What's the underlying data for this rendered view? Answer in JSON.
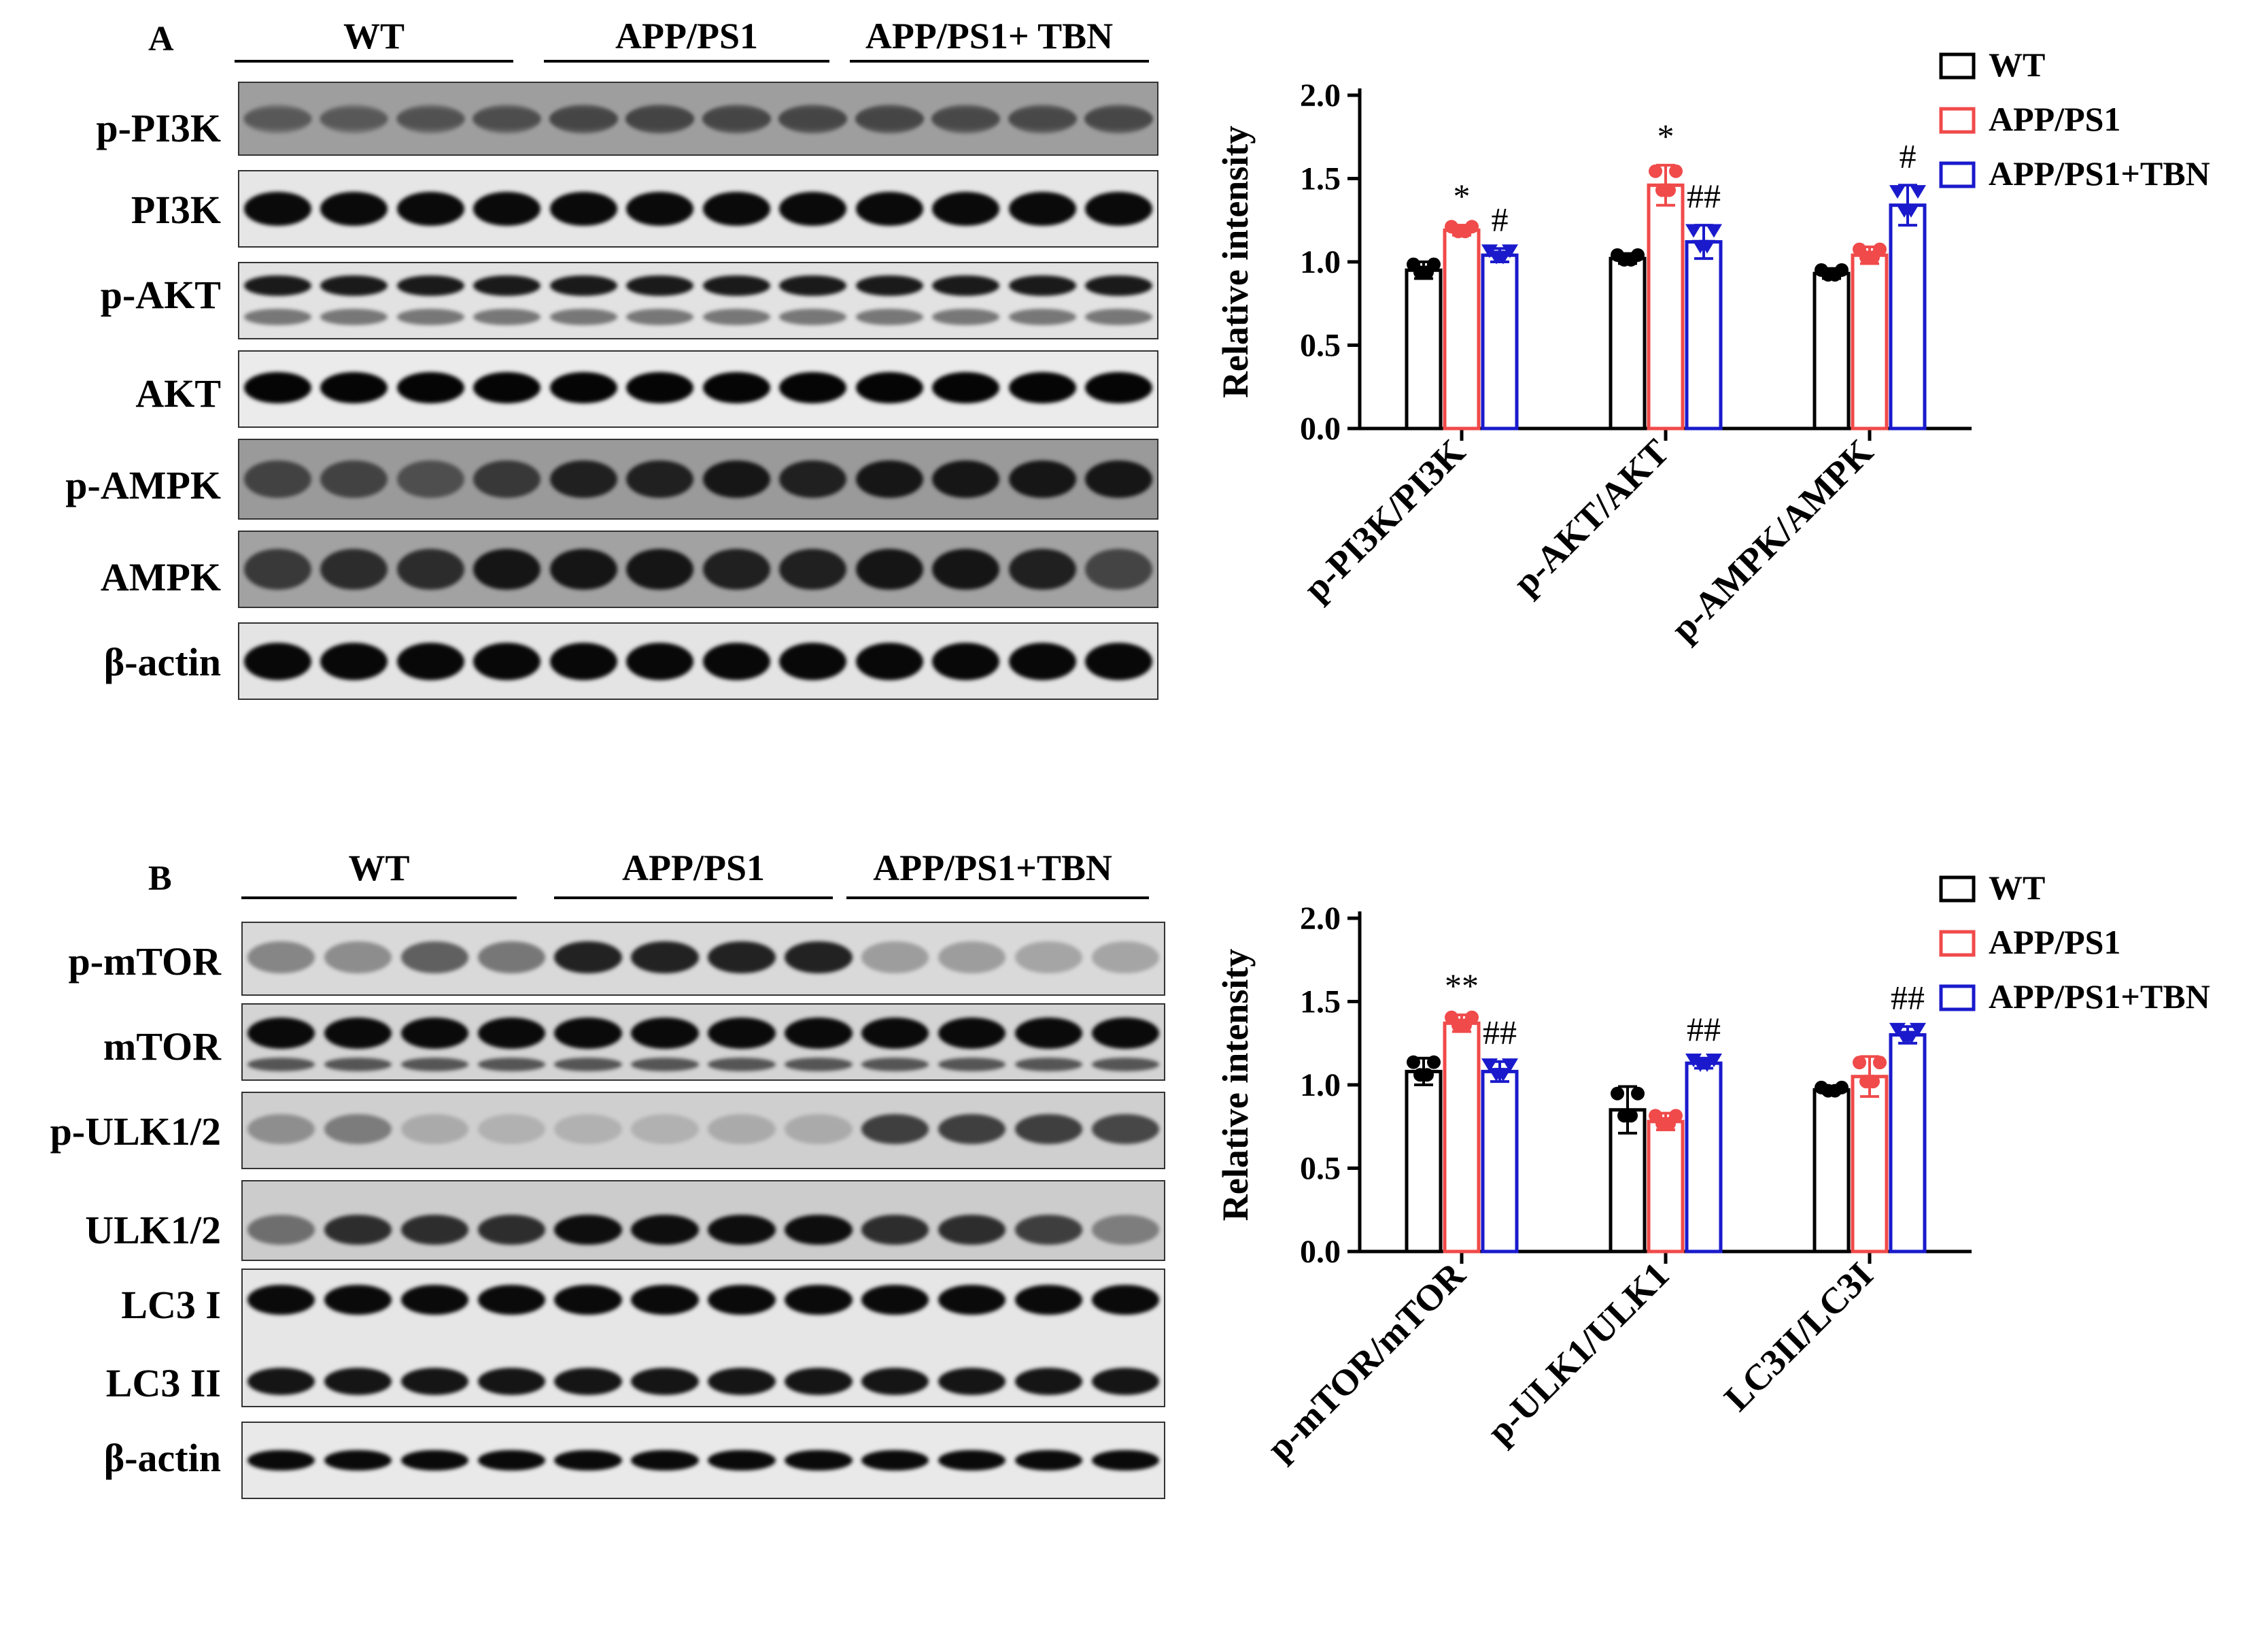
{
  "panelA": {
    "letter": "A",
    "groups": [
      "WT",
      "APP/PS1",
      "APP/PS1+ TBN"
    ],
    "rows": [
      "p-PI3K",
      "PI3K",
      "p-AKT",
      "AKT",
      "p-AMPK",
      "AMPK",
      "β-actin"
    ]
  },
  "panelB": {
    "letter": "B",
    "groups": [
      "WT",
      "APP/PS1",
      "APP/PS1+TBN"
    ],
    "rows": [
      "p-mTOR",
      "mTOR",
      "p-ULK1/2",
      "ULK1/2",
      "LC3 I",
      "LC3 II",
      "β-actin"
    ]
  },
  "colors": {
    "WT": "#000000",
    "APP/PS1": "#f04a4a",
    "APP/PS1+TBN": "#1a1acc"
  },
  "chart_data": [
    {
      "type": "bar",
      "ylabel": "Relative intensity",
      "ylim": [
        0,
        2.0
      ],
      "yticks": [
        "0.0",
        "0.5",
        "1.0",
        "1.5",
        "2.0"
      ],
      "categories": [
        "p-PI3K/PI3K",
        "p-AKT/AKT",
        "p-AMPK/AMPK"
      ],
      "series": [
        {
          "name": "WT",
          "values": [
            0.95,
            1.02,
            0.93
          ],
          "errors": [
            0.05,
            0.03,
            0.03
          ]
        },
        {
          "name": "APP/PS1",
          "values": [
            1.19,
            1.46,
            1.04
          ],
          "errors": [
            0.03,
            0.12,
            0.05
          ]
        },
        {
          "name": "APP/PS1+TBN",
          "values": [
            1.04,
            1.12,
            1.34
          ],
          "errors": [
            0.04,
            0.1,
            0.12
          ]
        }
      ],
      "annotations": [
        [
          "",
          "*",
          "#"
        ],
        [
          "",
          "*",
          "##"
        ],
        [
          "",
          "",
          "#"
        ]
      ],
      "legend": [
        "WT",
        "APP/PS1",
        "APP/PS1+TBN"
      ],
      "legend_position": "top-right"
    },
    {
      "type": "bar",
      "ylabel": "Relative intensity",
      "ylim": [
        0,
        2.0
      ],
      "yticks": [
        "0.0",
        "0.5",
        "1.0",
        "1.5",
        "2.0"
      ],
      "categories": [
        "p-mTOR/mTOR",
        "p-ULK1/ULK1",
        "LC3II/LC3I"
      ],
      "series": [
        {
          "name": "WT",
          "values": [
            1.08,
            0.85,
            0.97
          ],
          "errors": [
            0.08,
            0.14,
            0.02
          ]
        },
        {
          "name": "APP/PS1",
          "values": [
            1.37,
            0.78,
            1.05
          ],
          "errors": [
            0.05,
            0.05,
            0.12
          ]
        },
        {
          "name": "APP/PS1+TBN",
          "values": [
            1.08,
            1.13,
            1.3
          ],
          "errors": [
            0.06,
            0.03,
            0.05
          ]
        }
      ],
      "annotations": [
        [
          "",
          "**",
          "##"
        ],
        [
          "",
          "",
          "##"
        ],
        [
          "",
          "",
          "##"
        ]
      ],
      "legend": [
        "WT",
        "APP/PS1",
        "APP/PS1+TBN"
      ],
      "legend_position": "top-right"
    }
  ]
}
